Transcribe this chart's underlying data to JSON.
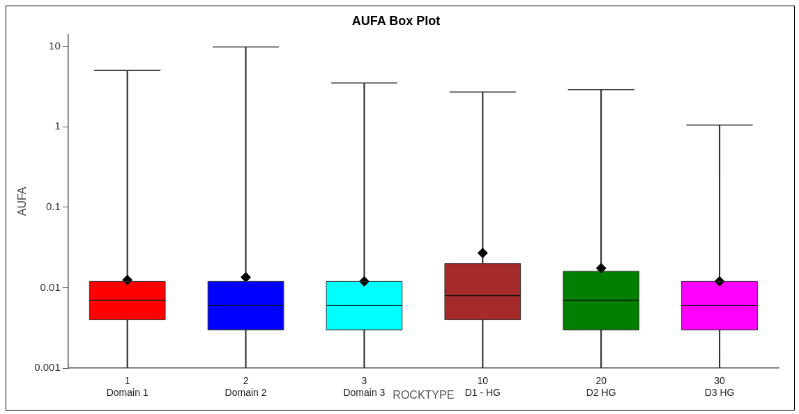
{
  "chart_data": {
    "type": "box",
    "title": "AUFA Box Plot",
    "xlabel": "ROCKTYPE",
    "ylabel": "AUFA",
    "categories": [
      "1\nDomain 1",
      "2\nDomain 2",
      "3\nDomain 3",
      "10\nD1 - HG",
      "20\nD2 HG",
      "30\nD3 HG"
    ],
    "colors": [
      "#ff0000",
      "#0000ff",
      "#00ffff",
      "#a52a2a",
      "#007f00",
      "#ff00ff"
    ],
    "boxes": [
      {
        "low": 0.001,
        "q1": 0.004,
        "median": 0.007,
        "q3": 0.012,
        "high": 5.0,
        "mean": 0.0125
      },
      {
        "low": 0.001,
        "q1": 0.003,
        "median": 0.006,
        "q3": 0.012,
        "high": 9.8,
        "mean": 0.0135
      },
      {
        "low": 0.001,
        "q1": 0.003,
        "median": 0.006,
        "q3": 0.012,
        "high": 3.5,
        "mean": 0.012
      },
      {
        "low": 0.001,
        "q1": 0.004,
        "median": 0.008,
        "q3": 0.02,
        "high": 2.7,
        "mean": 0.027
      },
      {
        "low": 0.001,
        "q1": 0.003,
        "median": 0.007,
        "q3": 0.016,
        "high": 2.9,
        "mean": 0.0175
      },
      {
        "low": 0.001,
        "q1": 0.003,
        "median": 0.006,
        "q3": 0.012,
        "high": 1.05,
        "mean": 0.012
      }
    ],
    "log": true,
    "ylim": [
      0.001,
      14
    ],
    "yticks": [
      0.001,
      0.01,
      0.1,
      1,
      10
    ],
    "grid": false,
    "legend": false,
    "marker": "diamond"
  }
}
